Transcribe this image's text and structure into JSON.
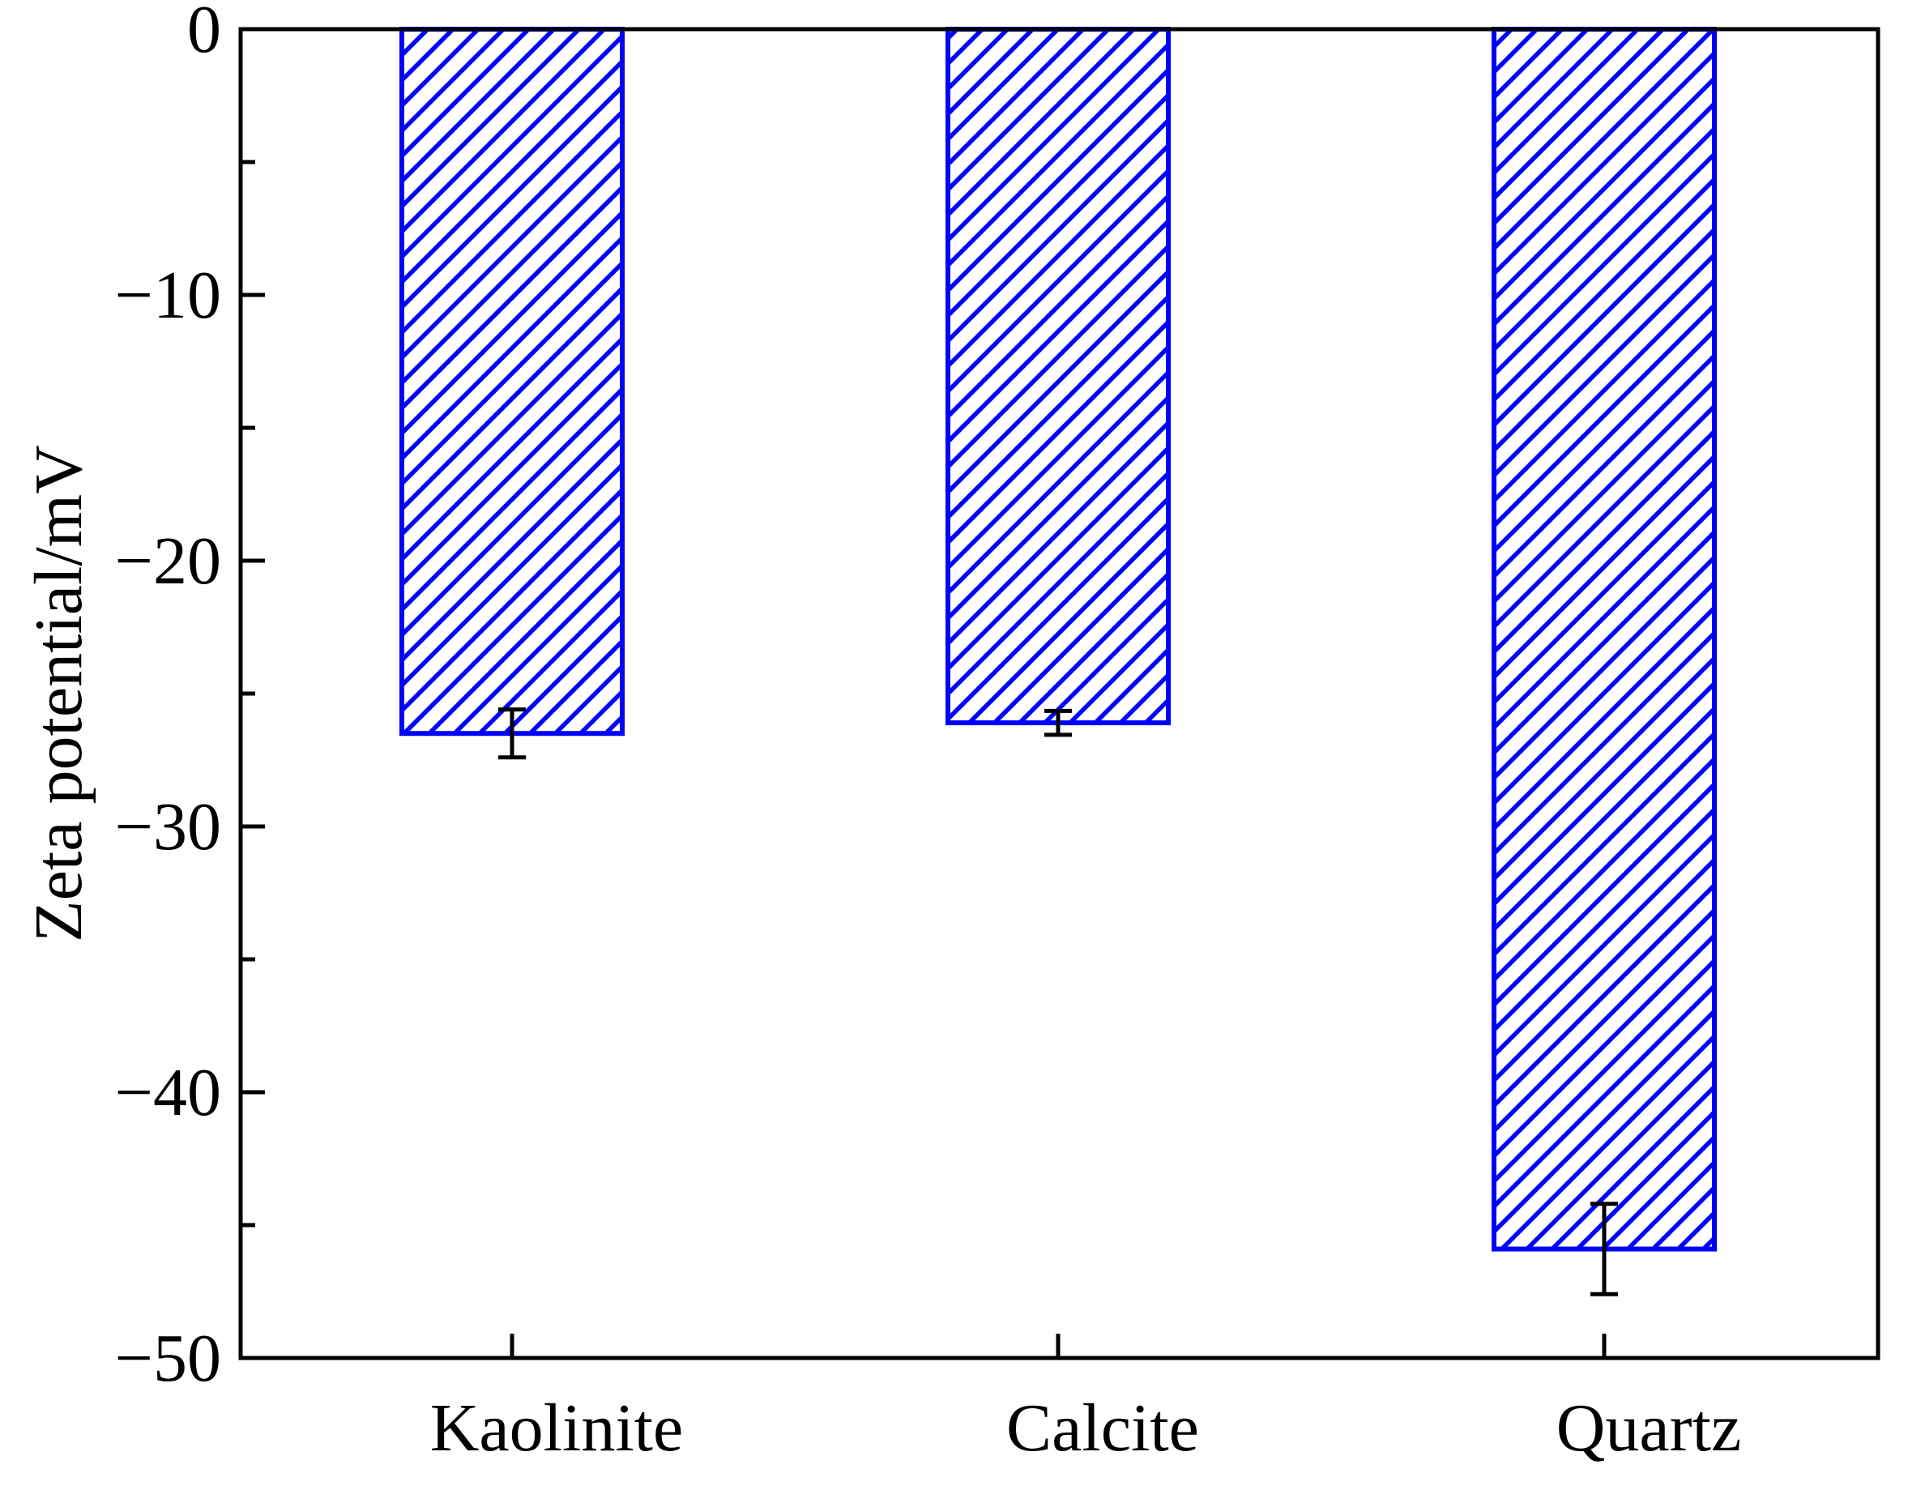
{
  "chart_data": {
    "type": "bar",
    "categories": [
      "Kaolinite",
      "Calcite",
      "Quartz"
    ],
    "values": [
      -26.5,
      -26.1,
      -45.9
    ],
    "error": [
      0.9,
      0.45,
      1.7
    ],
    "ylabel": "Zeta potential/mV",
    "xlabel": "",
    "title": "",
    "ylim": [
      -50,
      0
    ],
    "yticks_major": [
      0,
      -10,
      -20,
      -30,
      -40,
      -50
    ],
    "ytick_labels": [
      "0",
      "−10",
      "−20",
      "−30",
      "−40",
      "−50"
    ],
    "yticks_minor": [
      -5,
      -15,
      -25,
      -35,
      -45
    ],
    "bar_color": "#0000ff",
    "hatch": "diagonal",
    "errorbar_color": "#000000",
    "grid": false,
    "legend": "none"
  }
}
